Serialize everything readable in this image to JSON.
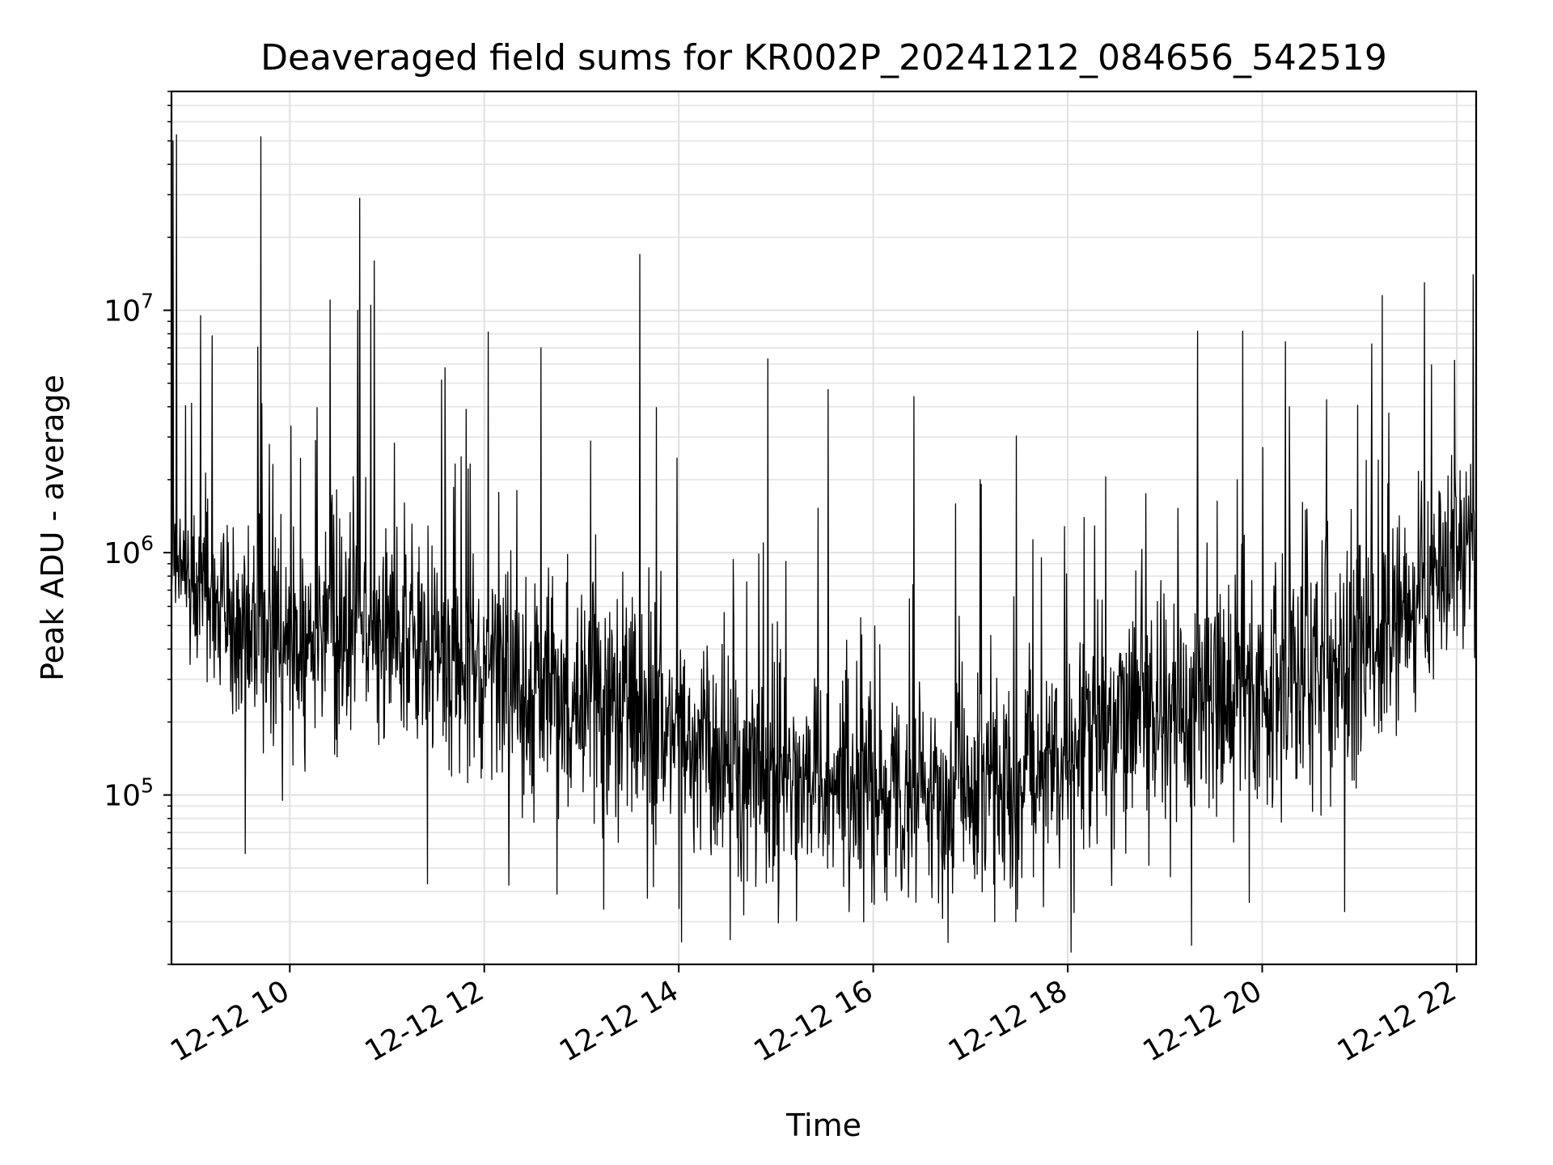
{
  "chart_data": {
    "type": "line",
    "title": "Deaveraged field sums for KR002P_20241212_084656_542519",
    "xlabel": "Time",
    "ylabel": "Peak ADU - average",
    "y_scale": "log",
    "ylim": [
      20000,
      80000000
    ],
    "xlim": [
      "2024-12-12 08:47",
      "2024-12-12 22:12"
    ],
    "grid": true,
    "legend": "none",
    "line_color": "#000000",
    "x_ticks": [
      {
        "label": "12-12 10",
        "value": "2024-12-12 10:00"
      },
      {
        "label": "12-12 12",
        "value": "2024-12-12 12:00"
      },
      {
        "label": "12-12 14",
        "value": "2024-12-12 14:00"
      },
      {
        "label": "12-12 16",
        "value": "2024-12-12 16:00"
      },
      {
        "label": "12-12 18",
        "value": "2024-12-12 18:00"
      },
      {
        "label": "12-12 20",
        "value": "2024-12-12 20:00"
      },
      {
        "label": "12-12 22",
        "value": "2024-12-12 22:00"
      }
    ],
    "y_ticks": [
      {
        "base": "10",
        "exp": "5",
        "value": 100000
      },
      {
        "base": "10",
        "exp": "6",
        "value": 1000000
      },
      {
        "base": "10",
        "exp": "7",
        "value": 10000000
      }
    ],
    "series": [
      {
        "x": [
          "2024-12-12 08:47",
          "2024-12-12 09:00",
          "2024-12-12 09:30",
          "2024-12-12 10:00",
          "2024-12-12 10:30",
          "2024-12-12 11:00",
          "2024-12-12 11:30",
          "2024-12-12 12:00",
          "2024-12-12 12:30",
          "2024-12-12 13:00",
          "2024-12-12 13:30",
          "2024-12-12 14:00",
          "2024-12-12 14:30",
          "2024-12-12 15:00",
          "2024-12-12 15:30",
          "2024-12-12 16:00",
          "2024-12-12 16:30",
          "2024-12-12 17:00",
          "2024-12-12 17:30",
          "2024-12-12 18:00",
          "2024-12-12 18:30",
          "2024-12-12 19:00",
          "2024-12-12 19:30",
          "2024-12-12 20:00",
          "2024-12-12 20:30",
          "2024-12-12 21:00",
          "2024-12-12 21:30",
          "2024-12-12 22:00",
          "2024-12-12 22:12"
        ],
        "y": [
          1100000,
          700000,
          550000,
          450000,
          480000,
          500000,
          400000,
          350000,
          280000,
          260000,
          250000,
          170000,
          130000,
          120000,
          110000,
          100000,
          100000,
          100000,
          110000,
          150000,
          200000,
          230000,
          240000,
          260000,
          300000,
          400000,
          600000,
          900000,
          1100000
        ],
        "spread": [
          0.2,
          0.25,
          0.3,
          0.3,
          0.35,
          0.3,
          0.3,
          0.3,
          0.32,
          0.35,
          0.35,
          0.32,
          0.3,
          0.3,
          0.28,
          0.28,
          0.28,
          0.28,
          0.3,
          0.3,
          0.32,
          0.33,
          0.33,
          0.34,
          0.35,
          0.35,
          0.33,
          0.28,
          0.25
        ]
      }
    ],
    "peaks": [
      {
        "x": "2024-12-12 08:48",
        "y": 50000000
      },
      {
        "x": "2024-12-12 08:50",
        "y": 53000000
      },
      {
        "x": "2024-12-12 09:05",
        "y": 9500000
      },
      {
        "x": "2024-12-12 10:43",
        "y": 29000000
      },
      {
        "x": "2024-12-12 10:42",
        "y": 10000000
      },
      {
        "x": "2024-12-12 10:52",
        "y": 16000000
      },
      {
        "x": "2024-12-12 10:50",
        "y": 10500000
      },
      {
        "x": "2024-12-12 12:35",
        "y": 7000000
      },
      {
        "x": "2024-12-12 13:36",
        "y": 17000000
      },
      {
        "x": "2024-12-12 14:55",
        "y": 6300000
      },
      {
        "x": "2024-12-12 15:32",
        "y": 4700000
      },
      {
        "x": "2024-12-12 16:25",
        "y": 4400000
      },
      {
        "x": "2024-12-12 17:06",
        "y": 2000000
      },
      {
        "x": "2024-12-12 19:20",
        "y": 8200000
      },
      {
        "x": "2024-12-12 19:48",
        "y": 8200000
      },
      {
        "x": "2024-12-12 21:14",
        "y": 11500000
      },
      {
        "x": "2024-12-12 21:40",
        "y": 13000000
      },
      {
        "x": "2024-12-12 22:10",
        "y": 14000000
      }
    ],
    "troughs": [
      {
        "x": "2024-12-12 09:42",
        "y": 52000000
      },
      {
        "x": "2024-12-12 11:25",
        "y": 43000
      },
      {
        "x": "2024-12-12 12:45",
        "y": 39000
      },
      {
        "x": "2024-12-12 14:00",
        "y": 34000
      },
      {
        "x": "2024-12-12 14:40",
        "y": 32000
      },
      {
        "x": "2024-12-12 15:45",
        "y": 33000
      },
      {
        "x": "2024-12-12 17:15",
        "y": 30000
      },
      {
        "x": "2024-12-12 17:28",
        "y": 30000
      },
      {
        "x": "2024-12-12 19:52",
        "y": 36000
      }
    ]
  }
}
